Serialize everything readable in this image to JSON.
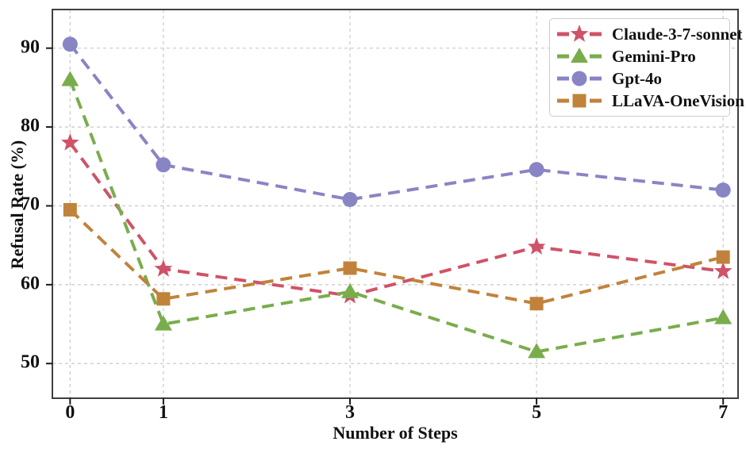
{
  "chart_data": {
    "type": "line",
    "x": [
      0,
      1,
      3,
      5,
      7
    ],
    "series": [
      {
        "name": "Claude-3-7-sonnet",
        "marker": "star",
        "color": "#cf5368",
        "values": [
          78.0,
          62.0,
          58.6,
          64.8,
          61.7
        ]
      },
      {
        "name": "Gemini-Pro",
        "marker": "triangle",
        "color": "#79ad4c",
        "values": [
          86.0,
          55.0,
          59.1,
          51.5,
          55.8
        ]
      },
      {
        "name": "Gpt-4o",
        "marker": "circle",
        "color": "#8985c4",
        "values": [
          90.5,
          75.2,
          70.8,
          74.6,
          72.0
        ]
      },
      {
        "name": "LLaVA-OneVision",
        "marker": "square",
        "color": "#c1833b",
        "values": [
          69.5,
          58.2,
          62.1,
          57.6,
          63.5
        ]
      }
    ],
    "title": "",
    "xlabel": "Number of Steps",
    "ylabel": "Refusal Rate (%)",
    "xticks": [
      0,
      1,
      3,
      5,
      7
    ],
    "xtick_labels": [
      "0",
      "1",
      "3",
      "5",
      "7"
    ],
    "yticks": [
      50,
      60,
      70,
      80,
      90
    ],
    "ytick_labels": [
      "50",
      "60",
      "70",
      "80",
      "90"
    ],
    "xlim": [
      -0.19,
      7.16
    ],
    "ylim": [
      45.6,
      94.9
    ],
    "grid": true,
    "grid_style": "dashed",
    "line_style": "dashed",
    "legend_position": "upper right",
    "colors": {
      "spine": "#404040",
      "grid": "#c9c9c9",
      "tick": "#1a1a1a",
      "text": "#111111"
    }
  }
}
